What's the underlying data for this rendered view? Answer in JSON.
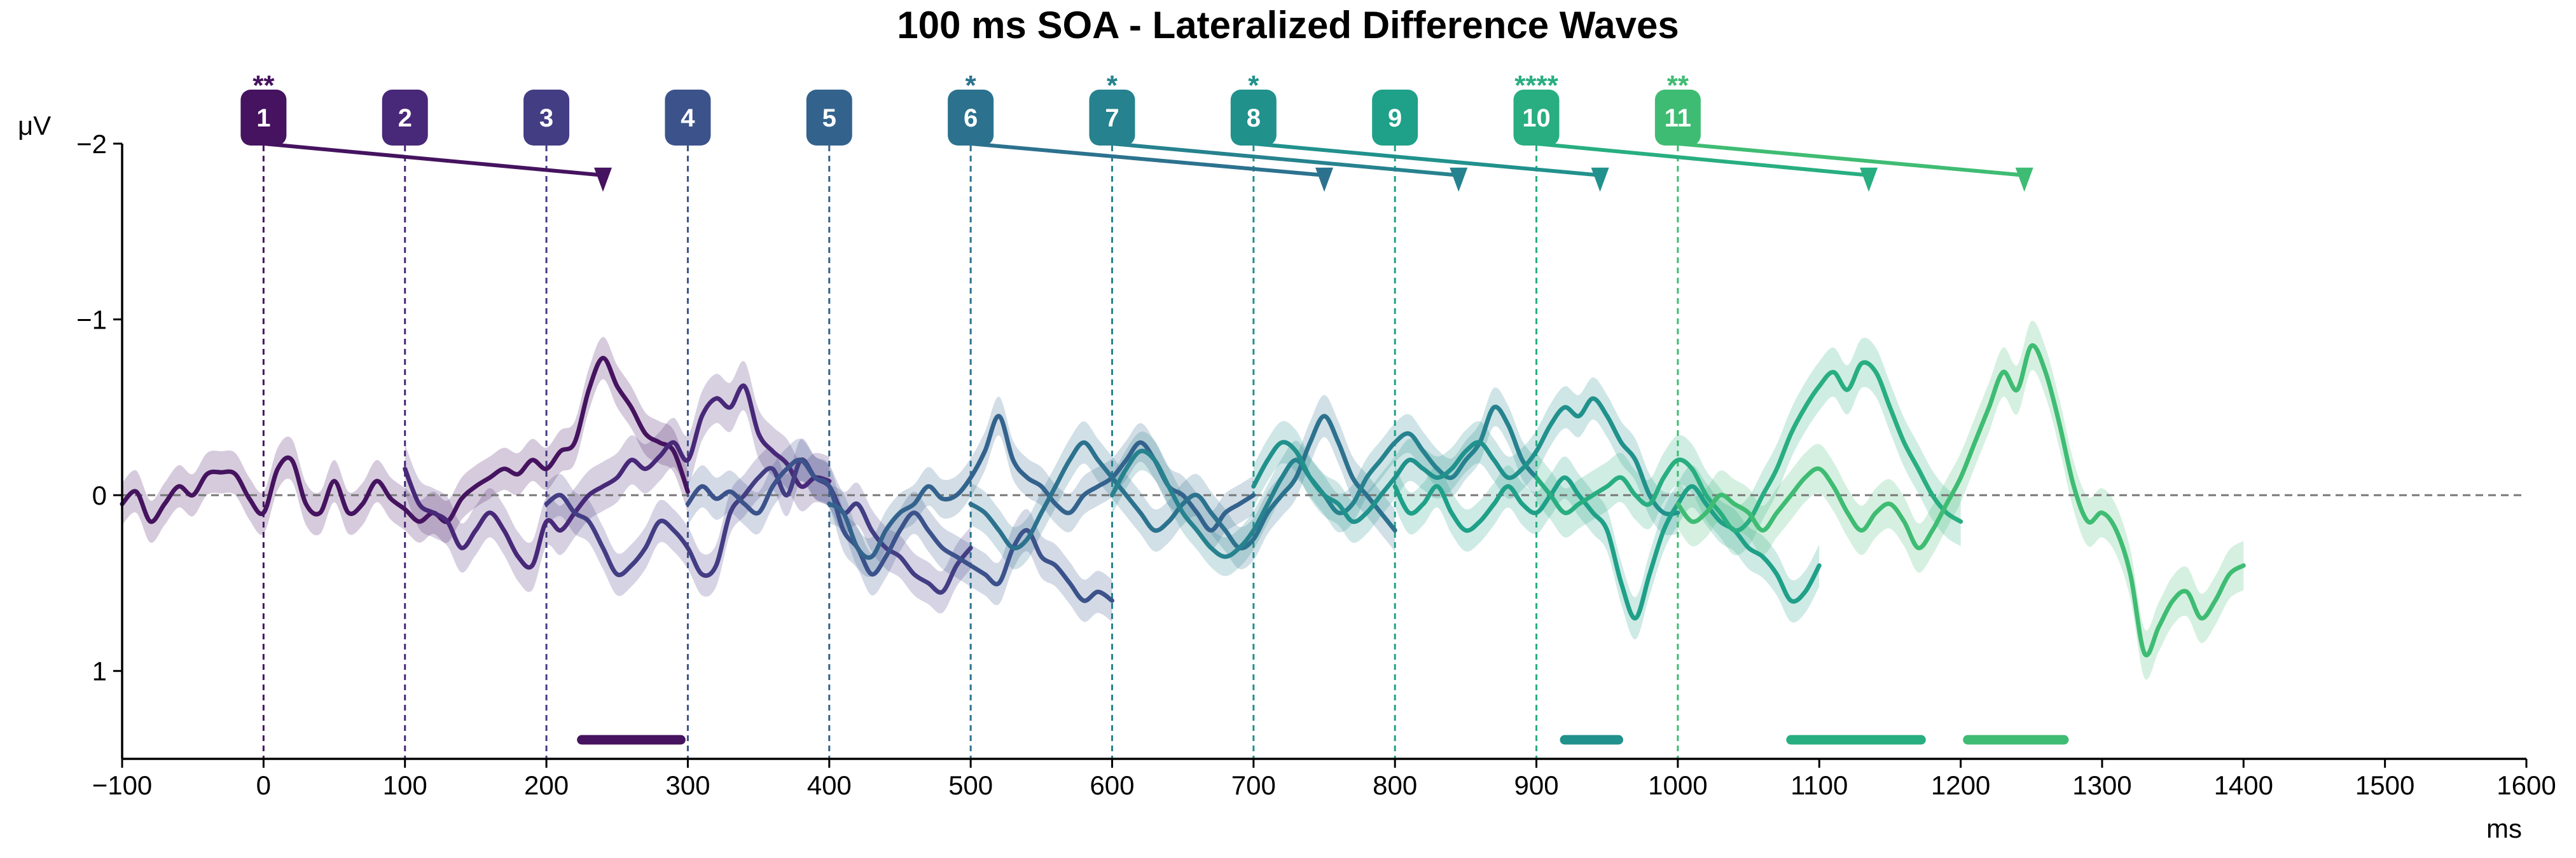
{
  "chart_data": {
    "type": "line",
    "title": "100 ms SOA - Lateralized Difference Waves",
    "xlabel": "ms",
    "ylabel": "μV",
    "xlim": [
      -100,
      1600
    ],
    "ylim": [
      -2,
      1.5
    ],
    "y_inverted": true,
    "xticks": [
      -100,
      0,
      100,
      200,
      300,
      400,
      500,
      600,
      700,
      800,
      900,
      1000,
      1100,
      1200,
      1300,
      1400,
      1500,
      1600
    ],
    "xtick_labels": [
      "−100",
      "0",
      "100",
      "200",
      "300",
      "400",
      "500",
      "600",
      "700",
      "800",
      "900",
      "1000",
      "1100",
      "1200",
      "1300",
      "1400",
      "1500",
      "1600"
    ],
    "yticks": [
      -2,
      -1,
      0,
      1
    ],
    "ytick_labels": [
      "−2",
      "−1",
      "0",
      "1"
    ],
    "zero_line": true,
    "grid": false,
    "onsets": [
      {
        "label": "1",
        "time": 0,
        "stars": "**",
        "color": "#45135f",
        "arrow_to": 240
      },
      {
        "label": "2",
        "time": 100,
        "stars": "",
        "color": "#482878",
        "arrow_to": null
      },
      {
        "label": "3",
        "time": 200,
        "stars": "",
        "color": "#433d84",
        "arrow_to": null
      },
      {
        "label": "4",
        "time": 300,
        "stars": "",
        "color": "#3b528b",
        "arrow_to": null
      },
      {
        "label": "5",
        "time": 400,
        "stars": "",
        "color": "#33638d",
        "arrow_to": null
      },
      {
        "label": "6",
        "time": 500,
        "stars": "*",
        "color": "#2c728e",
        "arrow_to": 750
      },
      {
        "label": "7",
        "time": 600,
        "stars": "*",
        "color": "#26828e",
        "arrow_to": 845
      },
      {
        "label": "8",
        "time": 700,
        "stars": "*",
        "color": "#21918c",
        "arrow_to": 945
      },
      {
        "label": "9",
        "time": 800,
        "stars": "",
        "color": "#1fa088",
        "arrow_to": null
      },
      {
        "label": "10",
        "time": 900,
        "stars": "****",
        "color": "#28ae80",
        "arrow_to": 1135
      },
      {
        "label": "11",
        "time": 1000,
        "stars": "**",
        "color": "#3fbc73",
        "arrow_to": 1245
      }
    ],
    "significance_bars": [
      {
        "start": 225,
        "end": 295,
        "color": "#45135f"
      },
      {
        "start": 920,
        "end": 958,
        "color": "#21918c"
      },
      {
        "start": 1080,
        "end": 1172,
        "color": "#28ae80"
      },
      {
        "start": 1205,
        "end": 1273,
        "color": "#3fbc73"
      }
    ],
    "series": [
      {
        "color": "#45135f",
        "sem": 0.12,
        "x": [
          -100,
          -90,
          -80,
          -70,
          -60,
          -50,
          -40,
          -30,
          -20,
          -10,
          0,
          10,
          20,
          30,
          40,
          50,
          60,
          70,
          80,
          90,
          100,
          110,
          120,
          130,
          140,
          150,
          160,
          170,
          180,
          190,
          200,
          210,
          220,
          230,
          240,
          250,
          260,
          270,
          280,
          290,
          300
        ],
        "y": [
          0.05,
          -0.02,
          0.15,
          0.05,
          -0.05,
          0,
          -0.12,
          -0.13,
          -0.12,
          0.02,
          0.1,
          -0.15,
          -0.2,
          0.05,
          0.1,
          -0.08,
          0.1,
          0.05,
          -0.08,
          0.02,
          0.08,
          0.15,
          0.1,
          0.15,
          0.02,
          -0.05,
          -0.1,
          -0.15,
          -0.12,
          -0.2,
          -0.15,
          -0.25,
          -0.3,
          -0.6,
          -0.78,
          -0.62,
          -0.5,
          -0.35,
          -0.3,
          -0.25,
          -0.02
        ]
      },
      {
        "color": "#482878",
        "sem": 0.14,
        "x": [
          100,
          110,
          120,
          130,
          140,
          150,
          160,
          170,
          180,
          190,
          200,
          210,
          220,
          230,
          240,
          250,
          260,
          270,
          280,
          290,
          300,
          310,
          320,
          330,
          340,
          350,
          360,
          370,
          380,
          390,
          400
        ],
        "y": [
          -0.15,
          0.05,
          0.1,
          0.15,
          0.3,
          0.2,
          0.1,
          0.2,
          0.35,
          0.4,
          0.15,
          0.2,
          0.1,
          0,
          -0.05,
          -0.1,
          -0.2,
          -0.15,
          -0.22,
          -0.3,
          -0.2,
          -0.45,
          -0.55,
          -0.5,
          -0.62,
          -0.35,
          -0.25,
          -0.18,
          -0.05,
          -0.1,
          -0.08
        ]
      },
      {
        "color": "#433d84",
        "sem": 0.12,
        "x": [
          200,
          210,
          220,
          230,
          240,
          250,
          260,
          270,
          280,
          290,
          300,
          310,
          320,
          330,
          340,
          350,
          360,
          370,
          380,
          390,
          400,
          410,
          420,
          430,
          440,
          450,
          460,
          470,
          480,
          490,
          500
        ],
        "y": [
          0.05,
          0,
          0.1,
          0.15,
          0.3,
          0.45,
          0.4,
          0.3,
          0.15,
          0.2,
          0.3,
          0.45,
          0.4,
          0.1,
          0,
          -0.1,
          -0.15,
          0,
          -0.2,
          -0.1,
          -0.05,
          0.1,
          0.05,
          0.2,
          0.3,
          0.35,
          0.45,
          0.5,
          0.55,
          0.4,
          0.3
        ]
      },
      {
        "color": "#3b528b",
        "sem": 0.12,
        "x": [
          300,
          310,
          320,
          330,
          340,
          350,
          360,
          370,
          380,
          390,
          400,
          410,
          420,
          430,
          440,
          450,
          460,
          470,
          480,
          490,
          500,
          510,
          520,
          530,
          540,
          550,
          560,
          570,
          580,
          590,
          600
        ],
        "y": [
          0.05,
          -0.05,
          0.02,
          -0.02,
          0.05,
          0.1,
          -0.05,
          -0.15,
          -0.2,
          -0.1,
          -0.05,
          0.2,
          0.3,
          0.45,
          0.35,
          0.2,
          0.1,
          0.2,
          0.3,
          0.35,
          0.4,
          0.45,
          0.5,
          0.3,
          0.2,
          0.35,
          0.4,
          0.5,
          0.6,
          0.55,
          0.6
        ]
      },
      {
        "color": "#33638d",
        "sem": 0.11,
        "x": [
          400,
          410,
          420,
          430,
          440,
          450,
          460,
          470,
          480,
          490,
          500,
          510,
          520,
          530,
          540,
          550,
          560,
          570,
          580,
          590,
          600,
          610,
          620,
          630,
          640,
          650,
          660,
          670,
          680,
          690,
          700
        ],
        "y": [
          0.05,
          0.1,
          0.3,
          0.35,
          0.2,
          0.1,
          0.05,
          -0.05,
          0.02,
          0,
          -0.1,
          -0.25,
          -0.45,
          -0.2,
          -0.1,
          -0.05,
          0.05,
          0.1,
          0,
          -0.05,
          -0.1,
          -0.2,
          -0.3,
          -0.2,
          -0.05,
          0,
          0.1,
          0.2,
          0.1,
          0.05,
          0
        ]
      },
      {
        "color": "#2c728e",
        "sem": 0.12,
        "x": [
          500,
          510,
          520,
          530,
          540,
          550,
          560,
          570,
          580,
          590,
          600,
          610,
          620,
          630,
          640,
          650,
          660,
          670,
          680,
          690,
          700,
          710,
          720,
          730,
          740,
          750,
          760,
          770,
          780,
          790,
          800
        ],
        "y": [
          0.05,
          0.1,
          0.2,
          0.3,
          0.25,
          0.1,
          -0.05,
          -0.2,
          -0.3,
          -0.2,
          -0.1,
          0,
          0.1,
          0.2,
          0.15,
          0.05,
          0,
          0.1,
          0.2,
          0.3,
          0.25,
          0.1,
          0,
          -0.1,
          -0.3,
          -0.45,
          -0.3,
          -0.1,
          0,
          0.1,
          0.2
        ]
      },
      {
        "color": "#26828e",
        "sem": 0.11,
        "x": [
          600,
          610,
          620,
          630,
          640,
          650,
          660,
          670,
          680,
          690,
          700,
          710,
          720,
          730,
          740,
          750,
          760,
          770,
          780,
          790,
          800,
          810,
          820,
          830,
          840,
          850,
          860,
          870,
          880,
          890,
          900
        ],
        "y": [
          0,
          -0.15,
          -0.25,
          -0.2,
          -0.05,
          0.1,
          0.2,
          0.3,
          0.35,
          0.3,
          0.2,
          0.05,
          -0.1,
          -0.2,
          -0.1,
          0,
          0.1,
          0.05,
          -0.1,
          -0.2,
          -0.3,
          -0.35,
          -0.25,
          -0.15,
          -0.1,
          -0.2,
          -0.3,
          -0.5,
          -0.4,
          -0.2,
          -0.1
        ]
      },
      {
        "color": "#21918c",
        "sem": 0.12,
        "x": [
          700,
          710,
          720,
          730,
          740,
          750,
          760,
          770,
          780,
          790,
          800,
          810,
          820,
          830,
          840,
          850,
          860,
          870,
          880,
          890,
          900,
          910,
          920,
          930,
          940,
          950,
          960,
          970,
          980,
          990,
          1000
        ],
        "y": [
          -0.05,
          -0.2,
          -0.3,
          -0.25,
          -0.1,
          0,
          0.05,
          0.15,
          0.1,
          0,
          -0.1,
          -0.2,
          -0.15,
          -0.1,
          -0.15,
          -0.25,
          -0.3,
          -0.2,
          -0.1,
          -0.15,
          -0.25,
          -0.4,
          -0.5,
          -0.45,
          -0.55,
          -0.45,
          -0.3,
          -0.2,
          0,
          0.1,
          0.1
        ]
      },
      {
        "color": "#1fa088",
        "sem": 0.12,
        "x": [
          800,
          810,
          820,
          830,
          840,
          850,
          860,
          870,
          880,
          890,
          900,
          910,
          920,
          930,
          940,
          950,
          960,
          970,
          980,
          990,
          1000,
          1010,
          1020,
          1030,
          1040,
          1050,
          1060,
          1070,
          1080,
          1090,
          1100
        ],
        "y": [
          -0.05,
          0.1,
          0.05,
          -0.05,
          0.1,
          0.2,
          0.15,
          0.05,
          -0.05,
          0.05,
          0.1,
          0,
          -0.1,
          0,
          0.1,
          0.2,
          0.5,
          0.7,
          0.45,
          0.2,
          0.05,
          -0.05,
          0.05,
          0.15,
          0.2,
          0.3,
          0.35,
          0.45,
          0.6,
          0.55,
          0.4
        ]
      },
      {
        "color": "#28ae80",
        "sem": 0.14,
        "x": [
          900,
          910,
          920,
          930,
          940,
          950,
          960,
          970,
          980,
          990,
          1000,
          1010,
          1020,
          1030,
          1040,
          1050,
          1060,
          1070,
          1080,
          1090,
          1100,
          1110,
          1120,
          1130,
          1140,
          1150,
          1160,
          1170,
          1180,
          1190,
          1200
        ],
        "y": [
          -0.1,
          0,
          0.1,
          0.05,
          0,
          -0.05,
          -0.1,
          0,
          0.05,
          -0.1,
          -0.2,
          -0.15,
          0,
          0.1,
          0.2,
          0.15,
          0,
          -0.15,
          -0.35,
          -0.5,
          -0.62,
          -0.7,
          -0.6,
          -0.75,
          -0.7,
          -0.5,
          -0.3,
          -0.15,
          0,
          0.1,
          0.15
        ]
      },
      {
        "color": "#3fbc73",
        "sem": 0.14,
        "x": [
          1000,
          1010,
          1020,
          1030,
          1040,
          1050,
          1060,
          1070,
          1080,
          1090,
          1100,
          1110,
          1120,
          1130,
          1140,
          1150,
          1160,
          1170,
          1180,
          1190,
          1200,
          1210,
          1220,
          1230,
          1240,
          1250,
          1260,
          1270,
          1280,
          1290,
          1300,
          1310,
          1320,
          1330,
          1340,
          1350,
          1360,
          1370,
          1380,
          1390,
          1400
        ],
        "y": [
          0.05,
          0.15,
          0.1,
          0,
          0.05,
          0.1,
          0.2,
          0.1,
          0,
          -0.1,
          -0.15,
          -0.05,
          0.1,
          0.2,
          0.1,
          0.05,
          0.15,
          0.3,
          0.2,
          0.05,
          -0.1,
          -0.3,
          -0.5,
          -0.7,
          -0.6,
          -0.85,
          -0.7,
          -0.4,
          -0.05,
          0.15,
          0.1,
          0.2,
          0.45,
          0.9,
          0.75,
          0.6,
          0.55,
          0.7,
          0.6,
          0.45,
          0.4
        ]
      }
    ]
  }
}
